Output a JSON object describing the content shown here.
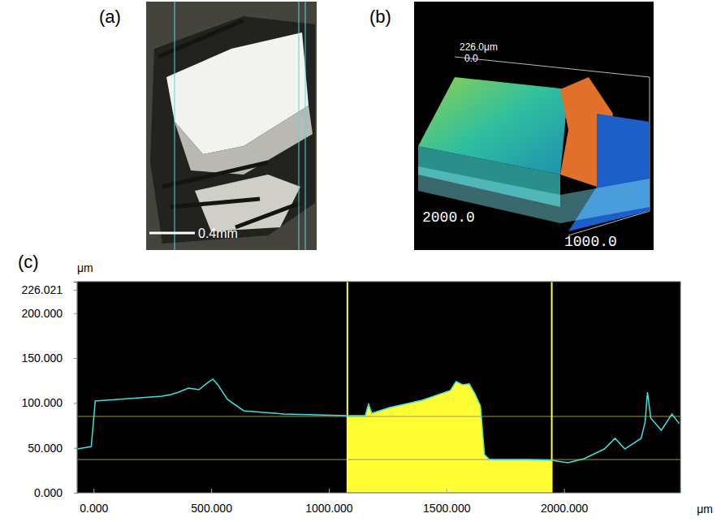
{
  "panels": [
    {
      "letter": "(a)",
      "scale_bar": "0.4mm"
    },
    {
      "letter": "(b)",
      "labels": [
        "226.0μm",
        "0.0",
        "2000.0",
        "1000.0"
      ]
    }
  ],
  "chart_data": {
    "letter": "(c)",
    "type": "line",
    "y_label": "μm",
    "x_label": "μm",
    "color": "#40e0e0",
    "x": [
      -69,
      -10,
      7,
      52,
      293,
      328,
      362,
      403,
      448,
      483,
      507,
      528,
      569,
      638,
      810,
      1079,
      1155,
      1169,
      1183,
      1259,
      1397,
      1517,
      1541,
      1569,
      1597,
      1621,
      1645,
      1662,
      1683,
      1845,
      1948,
      2017,
      2086,
      2172,
      2217,
      2259,
      2328,
      2345,
      2355,
      2369,
      2414,
      2459,
      2490
    ],
    "values": [
      48.8,
      51.5,
      102.2,
      103.1,
      107.6,
      109.4,
      112.1,
      116.6,
      114.8,
      122.1,
      126.6,
      120.3,
      104.0,
      91.3,
      87.7,
      85.9,
      85.9,
      98.6,
      88.6,
      94.9,
      103.1,
      113.9,
      123.9,
      120.3,
      121.2,
      110.3,
      96.7,
      42.5,
      37.1,
      37.1,
      36.2,
      33.5,
      38.0,
      48.8,
      60.6,
      48.8,
      60.6,
      78.7,
      112.1,
      83.2,
      69.6,
      87.7,
      76.9
    ],
    "xlim": [
      -70,
      2495
    ],
    "ylim": [
      0,
      235
    ],
    "xticks": [
      {
        "value": 0,
        "label": "0.000"
      },
      {
        "value": 500,
        "label": "500.000"
      },
      {
        "value": 1000,
        "label": "1000.000"
      },
      {
        "value": 1500,
        "label": "1500.000"
      },
      {
        "value": 2000,
        "label": "2000.000"
      }
    ],
    "yticks": [
      {
        "value": 0,
        "label": "0.000"
      },
      {
        "value": 50,
        "label": "50.000"
      },
      {
        "value": 100,
        "label": "100.000"
      },
      {
        "value": 150,
        "label": "150.000"
      },
      {
        "value": 200,
        "label": "200.000"
      },
      {
        "value": 226.021,
        "label": "226.021"
      }
    ],
    "highlight": {
      "x": [
        1079,
        1948
      ],
      "color": "#ffff33"
    },
    "cursors_y": [
      85,
      37
    ]
  }
}
